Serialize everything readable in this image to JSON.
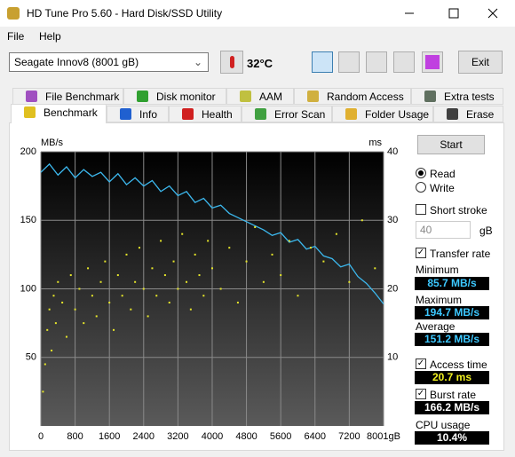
{
  "window": {
    "title": "HD Tune Pro 5.60 - Hard Disk/SSD Utility"
  },
  "menu": [
    "File",
    "Help"
  ],
  "toolbar": {
    "drive": "Seagate Innov8 (8001 gB)",
    "temperature": "32°C",
    "exit": "Exit"
  },
  "tabs_top": [
    "File Benchmark",
    "Disk monitor",
    "AAM",
    "Random Access",
    "Extra tests"
  ],
  "tabs_bottom": [
    "Benchmark",
    "Info",
    "Health",
    "Error Scan",
    "Folder Usage",
    "Erase"
  ],
  "chart_data": {
    "type": "line",
    "y_label": "MB/s",
    "y2_label": "ms",
    "xlim": [
      0,
      8001
    ],
    "xticks": [
      0,
      800,
      1600,
      2400,
      3200,
      4000,
      4800,
      5600,
      6400,
      7200,
      {
        "value": 8001,
        "label": "8001gB"
      }
    ],
    "ylim": [
      0,
      200
    ],
    "yticks": [
      50,
      100,
      150,
      200
    ],
    "y2lim": [
      0,
      40
    ],
    "y2ticks": [
      10,
      20,
      30,
      40
    ],
    "grid": true,
    "series": [
      {
        "name": "Transfer rate",
        "color": "#3cb8ee",
        "type": "line",
        "x": [
          0,
          200,
          400,
          600,
          800,
          1000,
          1200,
          1400,
          1600,
          1800,
          2000,
          2200,
          2400,
          2600,
          2800,
          3000,
          3200,
          3400,
          3600,
          3800,
          4000,
          4200,
          4400,
          4600,
          4800,
          5000,
          5200,
          5400,
          5600,
          5800,
          6000,
          6200,
          6400,
          6600,
          6800,
          7000,
          7200,
          7400,
          7600,
          7800,
          8000
        ],
        "values": [
          185,
          191,
          183,
          189,
          181,
          187,
          182,
          185,
          178,
          184,
          176,
          181,
          175,
          179,
          171,
          175,
          168,
          171,
          163,
          166,
          159,
          161,
          155,
          152,
          149,
          146,
          143,
          139,
          141,
          134,
          136,
          129,
          131,
          124,
          122,
          116,
          118,
          109,
          104,
          97,
          89
        ]
      },
      {
        "name": "Access time",
        "color": "#e6e62a",
        "type": "scatter",
        "axis": "y2",
        "x": [
          50,
          100,
          150,
          200,
          250,
          300,
          350,
          400,
          500,
          600,
          700,
          800,
          900,
          1000,
          1100,
          1200,
          1300,
          1400,
          1500,
          1600,
          1700,
          1800,
          1900,
          2000,
          2100,
          2200,
          2300,
          2400,
          2500,
          2600,
          2700,
          2800,
          2900,
          3000,
          3100,
          3200,
          3300,
          3400,
          3500,
          3600,
          3700,
          3800,
          3900,
          4000,
          4200,
          4400,
          4600,
          4800,
          5000,
          5200,
          5400,
          5600,
          5800,
          6000,
          6300,
          6600,
          6900,
          7200,
          7500,
          7800
        ],
        "values": [
          5,
          9,
          14,
          17,
          11,
          19,
          15,
          21,
          18,
          13,
          22,
          17,
          20,
          15,
          23,
          19,
          16,
          21,
          24,
          18,
          14,
          22,
          19,
          25,
          17,
          21,
          26,
          20,
          16,
          23,
          19,
          27,
          22,
          18,
          24,
          20,
          28,
          21,
          17,
          25,
          22,
          19,
          27,
          23,
          20,
          26,
          18,
          24,
          29,
          21,
          25,
          22,
          27,
          19,
          26,
          24,
          28,
          21,
          30,
          23
        ]
      }
    ]
  },
  "side": {
    "start": "Start",
    "read": "Read",
    "write": "Write",
    "short_stroke": "Short stroke",
    "stroke_size": 40,
    "stroke_unit": "gB",
    "stats": [
      {
        "label": "Minimum",
        "value": "85.7 MB/s"
      },
      {
        "label": "Maximum",
        "value": "194.7 MB/s"
      },
      {
        "label": "Average",
        "value": "151.2 MB/s"
      }
    ],
    "access": "20.7 ms",
    "burst_label": "Burst rate",
    "burst": "166.2 MB/s",
    "cpu_label": "CPU usage",
    "cpu": "10.4%"
  }
}
